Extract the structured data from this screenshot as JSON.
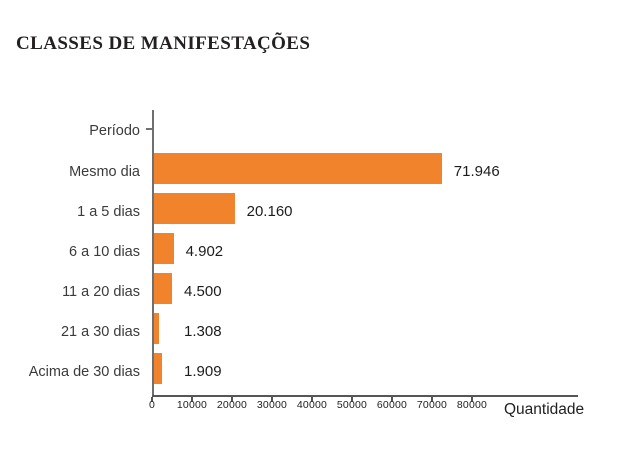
{
  "title": "CLASSES DE MANIFESTAÇÕES",
  "chart_data": {
    "type": "bar",
    "orientation": "horizontal",
    "title": "CLASSES DE MANIFESTAÇÕES",
    "ylabel": "Período",
    "xlabel": "Quantidade",
    "categories": [
      "Mesmo dia",
      "1 a 5 dias",
      "6 a 10 dias",
      "11 a 20 dias",
      "21 a 30 dias",
      "Acima de 30 dias"
    ],
    "values": [
      71946,
      20160,
      4902,
      4500,
      1308,
      1909
    ],
    "value_labels": [
      "71.946",
      "20.160",
      "4.902",
      "4.500",
      "1.308",
      "1.909"
    ],
    "xlim": [
      0,
      80000
    ],
    "x_ticks": [
      0,
      10000,
      20000,
      30000,
      40000,
      50000,
      60000,
      70000,
      80000
    ],
    "x_tick_labels": [
      "0",
      "10000",
      "20000",
      "30000",
      "40000",
      "50000",
      "60000",
      "70000",
      "80000"
    ],
    "grid": false,
    "legend": null,
    "colors": {
      "bar": "#F0832C",
      "y_axis": "#6f6f6f",
      "x_axis": "#565656",
      "category_text": "#3b3b3b",
      "value_text": "#1d1d1d",
      "title_text": "#242021"
    }
  }
}
